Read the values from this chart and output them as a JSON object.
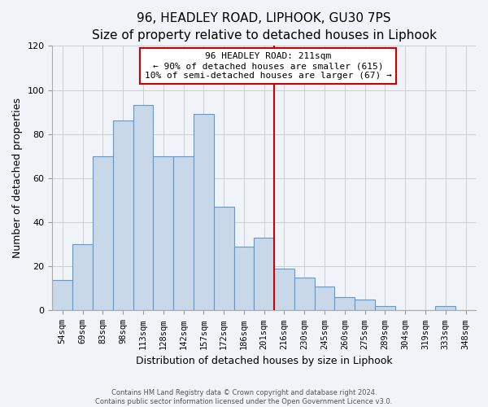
{
  "title": "96, HEADLEY ROAD, LIPHOOK, GU30 7PS",
  "subtitle": "Size of property relative to detached houses in Liphook",
  "xlabel": "Distribution of detached houses by size in Liphook",
  "ylabel": "Number of detached properties",
  "footer_line1": "Contains HM Land Registry data © Crown copyright and database right 2024.",
  "footer_line2": "Contains public sector information licensed under the Open Government Licence v3.0.",
  "bar_labels": [
    "54sqm",
    "69sqm",
    "83sqm",
    "98sqm",
    "113sqm",
    "128sqm",
    "142sqm",
    "157sqm",
    "172sqm",
    "186sqm",
    "201sqm",
    "216sqm",
    "230sqm",
    "245sqm",
    "260sqm",
    "275sqm",
    "289sqm",
    "304sqm",
    "319sqm",
    "333sqm",
    "348sqm"
  ],
  "bar_values": [
    14,
    30,
    70,
    86,
    93,
    70,
    70,
    89,
    47,
    29,
    33,
    19,
    15,
    11,
    6,
    5,
    2,
    0,
    0,
    2,
    0
  ],
  "bar_color": "#c8d8e8",
  "bar_edge_color": "#5b9bd5",
  "highlight_index": 11,
  "vline_color": "#cc0000",
  "annotation_line1": "96 HEADLEY ROAD: 211sqm",
  "annotation_line2": "← 90% of detached houses are smaller (615)",
  "annotation_line3": "10% of semi-detached houses are larger (67) →",
  "annotation_box_edge_color": "#cc0000",
  "annotation_box_face_color": "#ffffff",
  "ylim": [
    0,
    120
  ],
  "yticks": [
    0,
    20,
    40,
    60,
    80,
    100,
    120
  ],
  "grid_color": "#c8c8c8",
  "background_color": "#f0f4f8",
  "title_fontsize": 11,
  "subtitle_fontsize": 9,
  "ylabel_fontsize": 9,
  "xlabel_fontsize": 9
}
